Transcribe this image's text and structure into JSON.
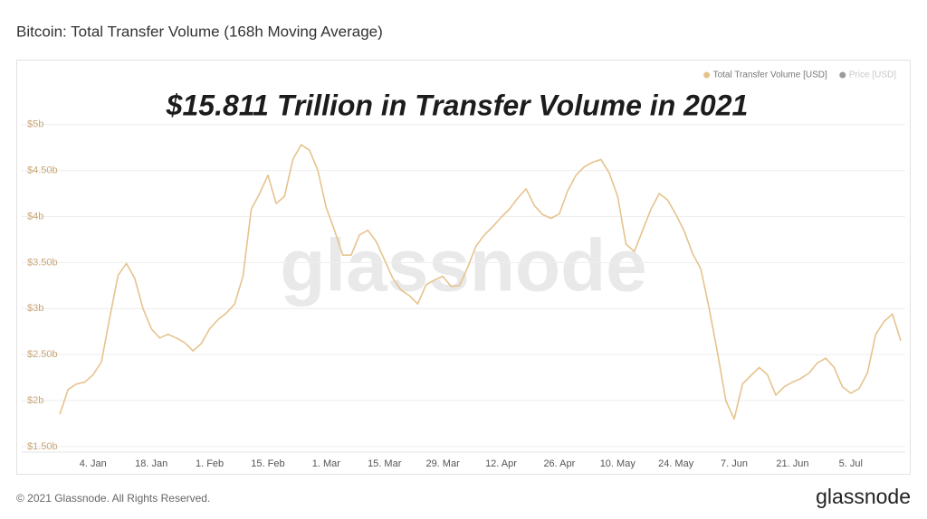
{
  "chart_data": {
    "type": "line",
    "title": "Bitcoin: Total Transfer Volume (168h Moving Average)",
    "annotation": "$15.811 Trillion in Transfer Volume in 2021",
    "watermark": "glassnode",
    "copyright": "© 2021 Glassnode. All Rights Reserved.",
    "logo": "glassnode",
    "categories": [
      null,
      null,
      null,
      null,
      "4. Jan",
      null,
      null,
      null,
      null,
      null,
      null,
      "18. Jan",
      null,
      null,
      null,
      null,
      null,
      null,
      "1. Feb",
      null,
      null,
      null,
      null,
      null,
      null,
      "15. Feb",
      null,
      null,
      null,
      null,
      null,
      null,
      "1. Mar",
      null,
      null,
      null,
      null,
      null,
      null,
      "15. Mar",
      null,
      null,
      null,
      null,
      null,
      null,
      "29. Mar",
      null,
      null,
      null,
      null,
      null,
      null,
      "12. Apr",
      null,
      null,
      null,
      null,
      null,
      null,
      "26. Apr",
      null,
      null,
      null,
      null,
      null,
      null,
      "10. May",
      null,
      null,
      null,
      null,
      null,
      null,
      "24. May",
      null,
      null,
      null,
      null,
      null,
      null,
      "7. Jun",
      null,
      null,
      null,
      null,
      null,
      null,
      "21. Jun",
      null,
      null,
      null,
      null,
      null,
      null,
      "5. Jul",
      null,
      null,
      null,
      null,
      null,
      null
    ],
    "series": [
      {
        "name": "Total Transfer Volume [USD]",
        "color": "#e6c38e",
        "values": [
          1.85,
          2.12,
          2.18,
          2.2,
          2.28,
          2.42,
          2.9,
          3.36,
          3.49,
          3.33,
          3.0,
          2.78,
          2.68,
          2.72,
          2.68,
          2.63,
          2.54,
          2.62,
          2.78,
          2.88,
          2.95,
          3.05,
          3.35,
          4.08,
          4.25,
          4.45,
          4.14,
          4.22,
          4.62,
          4.78,
          4.72,
          4.5,
          4.1,
          3.85,
          3.58,
          3.58,
          3.8,
          3.85,
          3.73,
          3.53,
          3.33,
          3.2,
          3.14,
          3.05,
          3.26,
          3.31,
          3.35,
          3.24,
          3.25,
          3.45,
          3.68,
          3.8,
          3.89,
          3.99,
          4.08,
          4.2,
          4.3,
          4.12,
          4.02,
          3.98,
          4.03,
          4.28,
          4.45,
          4.54,
          4.59,
          4.62,
          4.47,
          4.22,
          3.7,
          3.62,
          3.85,
          4.08,
          4.25,
          4.18,
          4.02,
          3.84,
          3.6,
          3.43,
          3.0,
          2.52,
          2.0,
          1.8,
          2.18,
          2.27,
          2.36,
          2.28,
          2.06,
          2.15,
          2.2,
          2.24,
          2.3,
          2.41,
          2.46,
          2.36,
          2.15,
          2.08,
          2.13,
          2.3,
          2.72,
          2.86,
          2.94,
          2.65
        ]
      }
    ],
    "inactive_series": [
      {
        "name": "Price [USD]",
        "color": "#9a9a9a"
      }
    ],
    "legend": "top-right",
    "ylim": [
      1.45,
      5.4
    ],
    "yticks": [
      {
        "value": 1.5,
        "label": "$1.50b"
      },
      {
        "value": 2,
        "label": "$2b"
      },
      {
        "value": 2.5,
        "label": "$2.50b"
      },
      {
        "value": 3,
        "label": "$3b"
      },
      {
        "value": 3.5,
        "label": "$3.50b"
      },
      {
        "value": 4,
        "label": "$4b"
      },
      {
        "value": 4.5,
        "label": "$4.50b"
      },
      {
        "value": 5,
        "label": "$5b"
      }
    ],
    "grid": true
  }
}
